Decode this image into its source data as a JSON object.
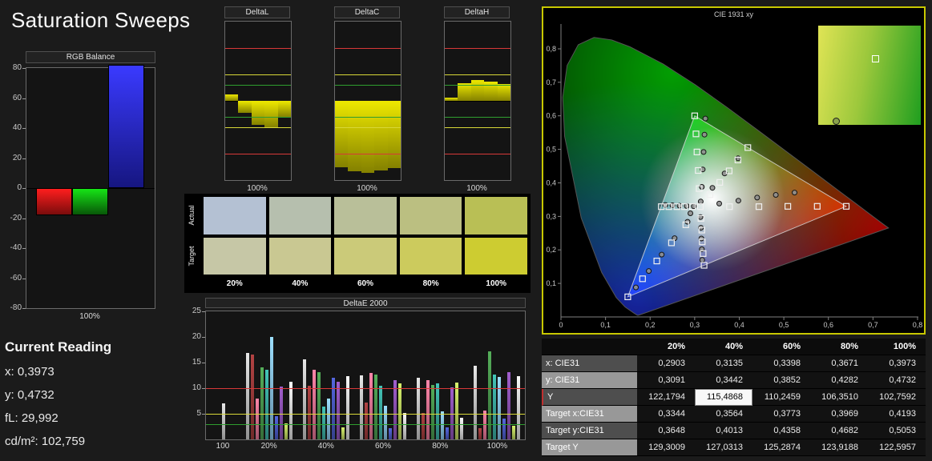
{
  "app": {
    "title": "Saturation Sweeps"
  },
  "colors": {
    "panel_border": "#c8c800",
    "limit_red": "#d83838",
    "limit_yellow": "#d8d838",
    "limit_green": "#2f9e2f",
    "delta_bar": "#b7b300",
    "rgb_red": "#dd1515",
    "rgb_green": "#0f9e0f",
    "rgb_blue": "#2828e8"
  },
  "rgb_balance": {
    "title": "RGB Balance",
    "x_label": "100%",
    "ylim": [
      -80,
      80
    ],
    "ticks": [
      80,
      60,
      40,
      20,
      0,
      -20,
      -40,
      -60,
      -80
    ],
    "bars": [
      {
        "name": "red",
        "value": -18
      },
      {
        "name": "green",
        "value": -18
      },
      {
        "name": "blue",
        "value": 82
      }
    ]
  },
  "delta_charts": {
    "ylim": [
      -15,
      15
    ],
    "ticks": [
      15,
      10,
      5,
      0,
      -5,
      -10,
      -15
    ],
    "x_label": "100%",
    "limits": {
      "red": 10,
      "yellow": 5,
      "green": 3
    },
    "charts": [
      {
        "title": "DeltaL",
        "values": [
          1.2,
          -2.2,
          -4.6,
          -5.0,
          -3.0
        ]
      },
      {
        "title": "DeltaC",
        "values": [
          -12.6,
          -13.4,
          -13.6,
          -13.2,
          -12.8
        ]
      },
      {
        "title": "DeltaH",
        "values": [
          0.6,
          3.4,
          3.9,
          3.7,
          3.2
        ]
      }
    ]
  },
  "swatches": {
    "row_labels": [
      "Actual",
      "Target"
    ],
    "col_labels": [
      "20%",
      "40%",
      "60%",
      "80%",
      "100%"
    ],
    "actual": [
      "#b4c1d3",
      "#b6bfae",
      "#b9bf99",
      "#bbbf81",
      "#b9bf55"
    ],
    "target": [
      "#c6c7a6",
      "#c9c892",
      "#cbca79",
      "#cccb5d",
      "#cdcc31"
    ]
  },
  "deltae": {
    "title": "DeltaE 2000",
    "ylim": [
      0,
      25
    ],
    "ticks": [
      25,
      20,
      15,
      10,
      5
    ],
    "limits": {
      "red": 10,
      "yellow": 5,
      "green": 3
    },
    "palette": [
      "#cfcfcf",
      "#a03c3c",
      "#e87898",
      "#4c9c50",
      "#3cb0a4",
      "#8cc8ec",
      "#4c5cc8",
      "#9054b8",
      "#c0d860",
      "#e0e0e0"
    ],
    "groups": [
      {
        "label": "100",
        "values": [
          7.0
        ]
      },
      {
        "label": "20%",
        "values": [
          16.8,
          16.5,
          7.9,
          14.0,
          13.6,
          20.0,
          4.6,
          10.3,
          3.1,
          11.2
        ]
      },
      {
        "label": "40%",
        "values": [
          15.6,
          10.4,
          13.6,
          13.1,
          6.4,
          7.9,
          12.1,
          11.2,
          2.3,
          12.4
        ]
      },
      {
        "label": "60%",
        "values": [
          12.5,
          7.2,
          13.0,
          12.6,
          10.5,
          6.6,
          2.2,
          11.5,
          10.9,
          5.1
        ]
      },
      {
        "label": "80%",
        "values": [
          12.0,
          5.2,
          11.6,
          10.7,
          11.0,
          5.4,
          2.3,
          10.2,
          11.1,
          4.2
        ]
      },
      {
        "label": "100%",
        "values": [
          14.4,
          2.2,
          5.7,
          17.2,
          12.6,
          12.2,
          4.1,
          13.1,
          2.6,
          12.4
        ]
      }
    ]
  },
  "cie": {
    "title": "CIE 1931 xy",
    "x_ticks": [
      "0",
      "0,1",
      "0,2",
      "0,3",
      "0,4",
      "0,5",
      "0,6",
      "0,7",
      "0,8"
    ],
    "y_ticks": [
      "0,1",
      "0,2",
      "0,3",
      "0,4",
      "0,5",
      "0,6",
      "0,7",
      "0,8"
    ],
    "gamut_triangle": [
      [
        0.64,
        0.33
      ],
      [
        0.3,
        0.6
      ],
      [
        0.15,
        0.06
      ]
    ],
    "white_point": [
      0.3127,
      0.329
    ],
    "target_squares": [
      [
        0.378,
        0.329
      ],
      [
        0.444,
        0.329
      ],
      [
        0.509,
        0.33
      ],
      [
        0.575,
        0.33
      ],
      [
        0.64,
        0.33
      ],
      [
        0.31,
        0.383
      ],
      [
        0.308,
        0.437
      ],
      [
        0.305,
        0.492
      ],
      [
        0.303,
        0.546
      ],
      [
        0.3,
        0.6
      ],
      [
        0.28,
        0.275
      ],
      [
        0.248,
        0.221
      ],
      [
        0.215,
        0.167
      ],
      [
        0.183,
        0.114
      ],
      [
        0.15,
        0.06
      ],
      [
        0.3344,
        0.3648
      ],
      [
        0.3564,
        0.4013
      ],
      [
        0.3773,
        0.4358
      ],
      [
        0.3969,
        0.4682
      ],
      [
        0.4193,
        0.5053
      ],
      [
        0.295,
        0.329
      ],
      [
        0.277,
        0.329
      ],
      [
        0.26,
        0.329
      ],
      [
        0.242,
        0.329
      ],
      [
        0.225,
        0.329
      ],
      [
        0.314,
        0.294
      ],
      [
        0.316,
        0.259
      ],
      [
        0.317,
        0.224
      ],
      [
        0.319,
        0.189
      ],
      [
        0.321,
        0.154
      ]
    ],
    "measured_circles": [
      [
        0.2903,
        0.3091
      ],
      [
        0.3135,
        0.3442
      ],
      [
        0.3398,
        0.3852
      ],
      [
        0.3671,
        0.4282
      ],
      [
        0.3973,
        0.4732
      ],
      [
        0.355,
        0.338
      ],
      [
        0.398,
        0.347
      ],
      [
        0.44,
        0.356
      ],
      [
        0.482,
        0.364
      ],
      [
        0.524,
        0.371
      ],
      [
        0.316,
        0.388
      ],
      [
        0.318,
        0.44
      ],
      [
        0.32,
        0.492
      ],
      [
        0.322,
        0.544
      ],
      [
        0.324,
        0.592
      ],
      [
        0.284,
        0.284
      ],
      [
        0.255,
        0.235
      ],
      [
        0.226,
        0.186
      ],
      [
        0.197,
        0.137
      ],
      [
        0.168,
        0.088
      ],
      [
        0.298,
        0.33
      ],
      [
        0.282,
        0.331
      ],
      [
        0.266,
        0.332
      ],
      [
        0.25,
        0.333
      ],
      [
        0.234,
        0.334
      ],
      [
        0.313,
        0.298
      ],
      [
        0.314,
        0.266
      ],
      [
        0.315,
        0.234
      ],
      [
        0.316,
        0.202
      ],
      [
        0.317,
        0.17
      ]
    ],
    "inset_gradient": [
      "#e0e455",
      "#9cc83c",
      "#1f9e1f"
    ],
    "inset_square": [
      0.52,
      0.3
    ],
    "inset_circle": [
      0.14,
      0.93
    ]
  },
  "measurement_table": {
    "columns": [
      "20%",
      "40%",
      "60%",
      "80%",
      "100%"
    ],
    "rows": [
      {
        "label": "x: CIE31",
        "values": [
          "0,2903",
          "0,3135",
          "0,3398",
          "0,3671",
          "0,3973"
        ]
      },
      {
        "label": "y: CIE31",
        "values": [
          "0,3091",
          "0,3442",
          "0,3852",
          "0,4282",
          "0,4732"
        ]
      },
      {
        "label": "Y",
        "values": [
          "122,1794",
          "115,4868",
          "110,2459",
          "106,3510",
          "102,7592"
        ],
        "highlight_col": 1
      },
      {
        "label": "Target x:CIE31",
        "values": [
          "0,3344",
          "0,3564",
          "0,3773",
          "0,3969",
          "0,4193"
        ]
      },
      {
        "label": "Target y:CIE31",
        "values": [
          "0,3648",
          "0,4013",
          "0,4358",
          "0,4682",
          "0,5053"
        ]
      },
      {
        "label": "Target Y",
        "values": [
          "129,3009",
          "127,0313",
          "125,2874",
          "123,9188",
          "122,5957"
        ]
      }
    ]
  },
  "current_reading": {
    "title": "Current Reading",
    "lines": [
      "x: 0,3973",
      "y: 0,4732",
      "fL: 29,992",
      "cd/m²: 102,759"
    ]
  }
}
